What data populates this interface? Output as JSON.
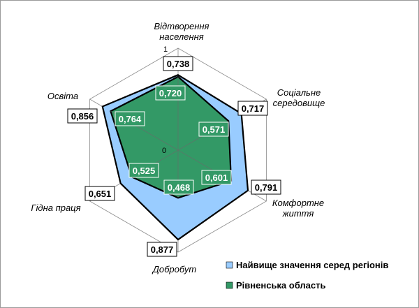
{
  "chart_data": {
    "type": "radar",
    "axes": [
      [
        "Відтворення",
        "населення"
      ],
      [
        "Соціальне",
        "середовище"
      ],
      [
        "Комфортне",
        "життя"
      ],
      [
        "Добробут"
      ],
      [
        "Гідна праця"
      ],
      [
        "Освіта"
      ]
    ],
    "rlim": [
      0,
      1
    ],
    "tick_labels": [
      "0",
      "1"
    ],
    "series": [
      {
        "name": "Найвище значення серед регіонів",
        "color": "#99ccff",
        "values": [
          0.738,
          0.717,
          0.791,
          0.877,
          0.651,
          0.856
        ],
        "labels": [
          "0,738",
          "0,717",
          "0,791",
          "0,877",
          "0,651",
          "0,856"
        ]
      },
      {
        "name": "Рівненська область",
        "color": "#339966",
        "values": [
          0.72,
          0.571,
          0.601,
          0.468,
          0.525,
          0.764
        ],
        "labels": [
          "0,720",
          "0,571",
          "0,601",
          "0,468",
          "0,525",
          "0,764"
        ]
      }
    ],
    "legend_position": "bottom-right"
  }
}
